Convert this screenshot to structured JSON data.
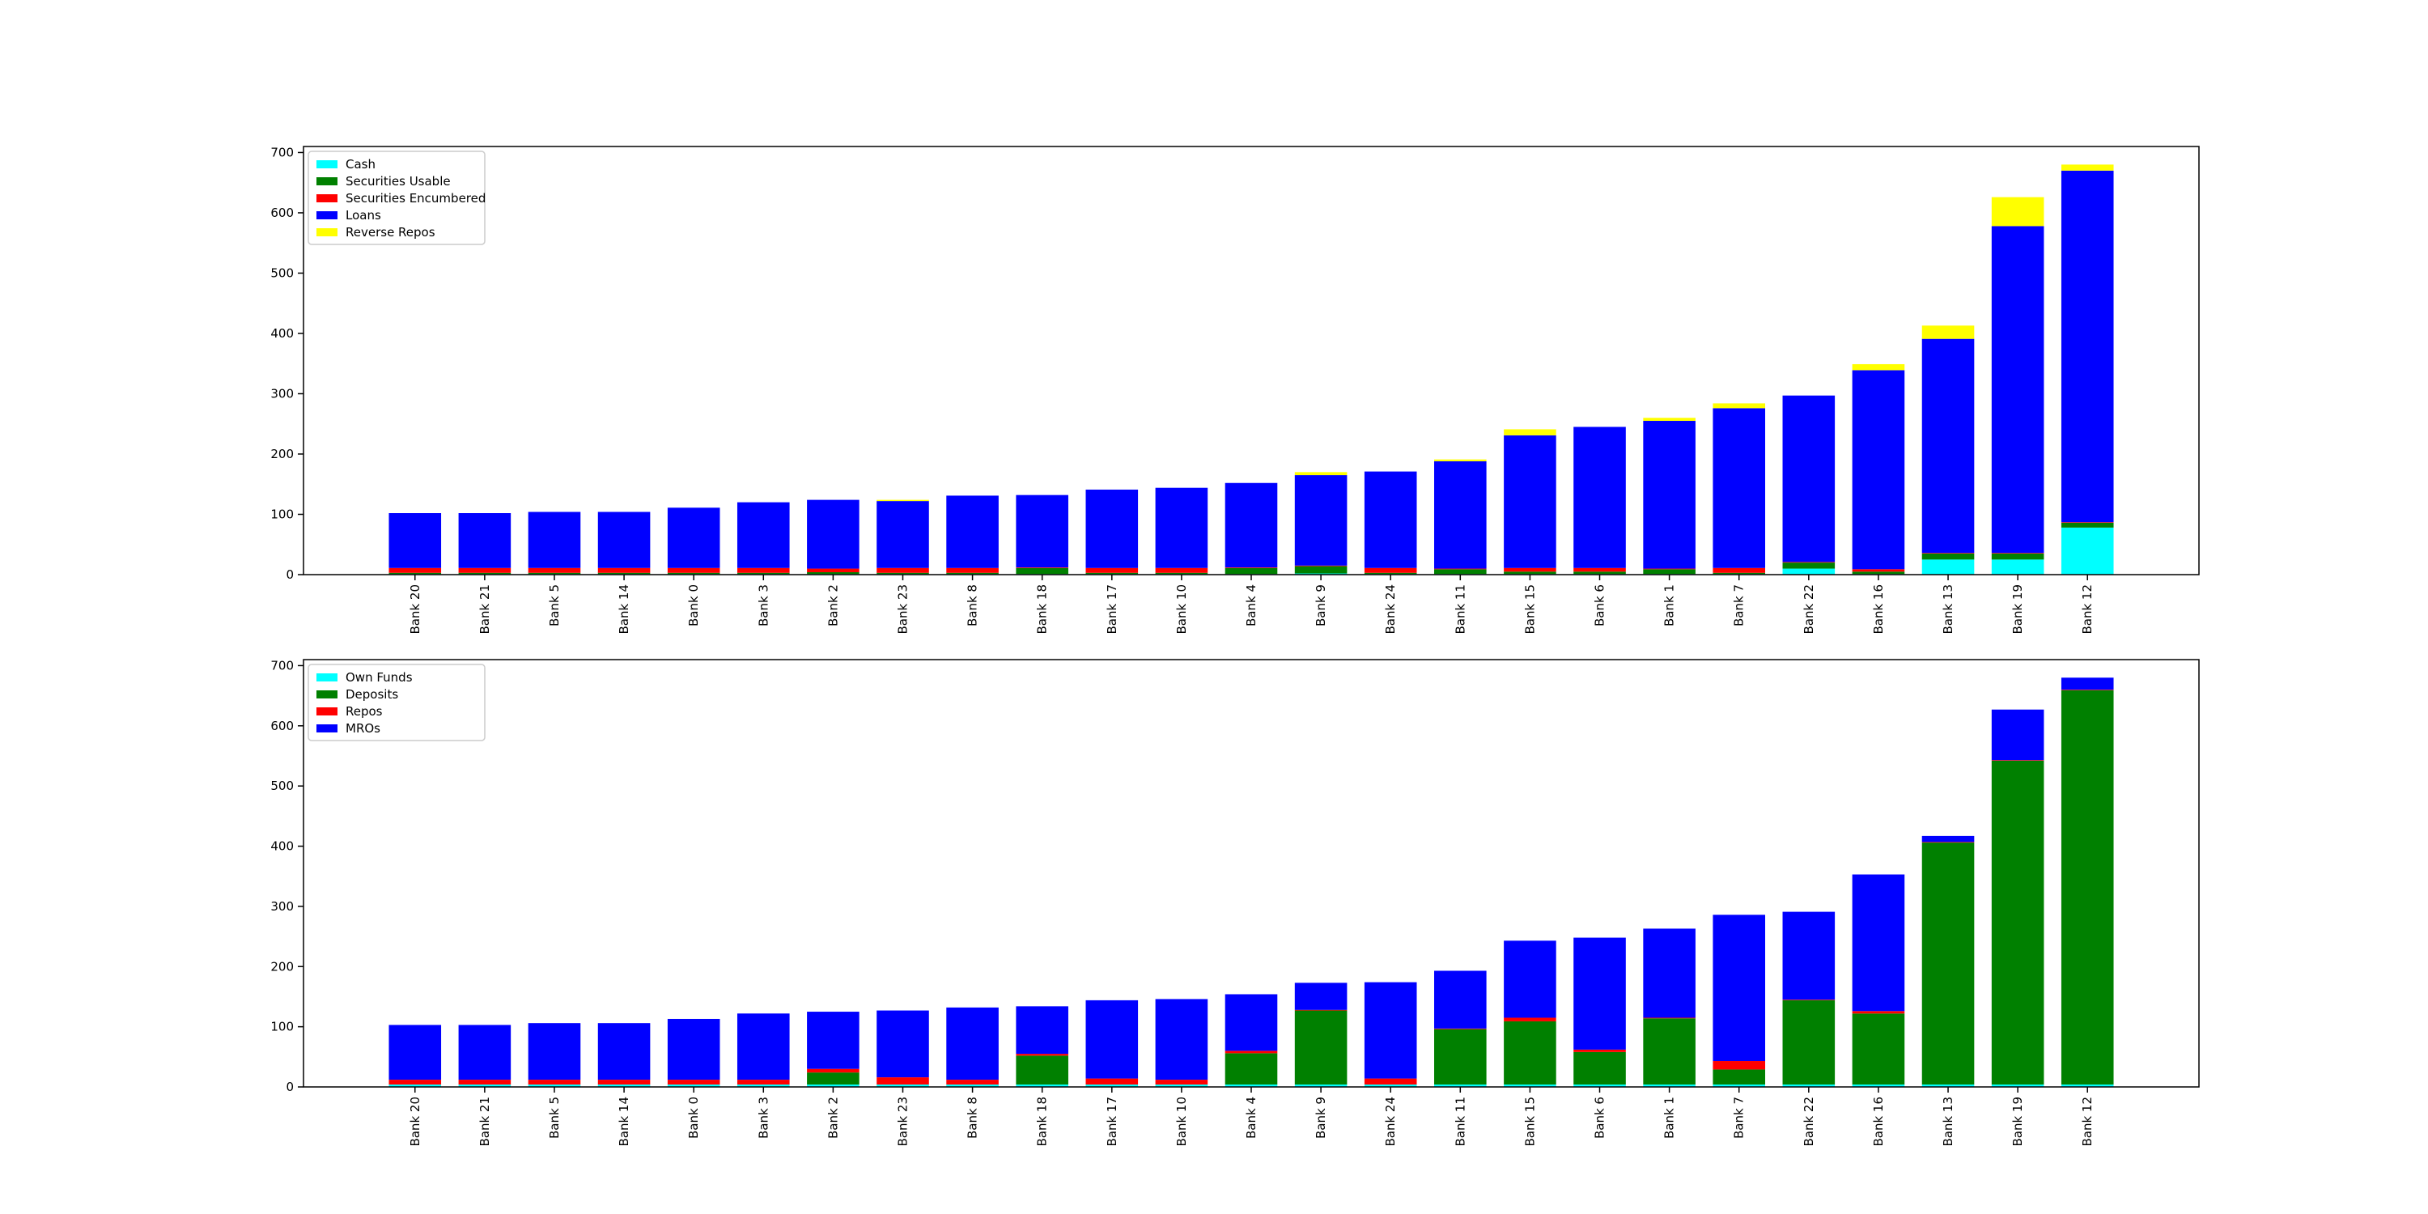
{
  "chart_data": [
    {
      "type": "bar",
      "stacked": true,
      "title": "",
      "xlabel": "",
      "ylabel": "",
      "ylim": [
        0,
        710
      ],
      "yticks": [
        0,
        100,
        200,
        300,
        400,
        500,
        600,
        700
      ],
      "grid": false,
      "legend_position": "top-left",
      "categories": [
        "Bank 20",
        "Bank 21",
        "Bank 5",
        "Bank 14",
        "Bank 0",
        "Bank 3",
        "Bank 2",
        "Bank 23",
        "Bank 8",
        "Bank 18",
        "Bank 17",
        "Bank 10",
        "Bank 4",
        "Bank 9",
        "Bank 24",
        "Bank 11",
        "Bank 15",
        "Bank 6",
        "Bank 1",
        "Bank 7",
        "Bank 22",
        "Bank 16",
        "Bank 13",
        "Bank 19",
        "Bank 12"
      ],
      "series": [
        {
          "name": "Cash",
          "color": "#00ffff",
          "values": [
            1,
            1,
            1,
            1,
            1,
            1,
            1,
            1,
            1,
            1,
            1,
            1,
            1,
            2,
            1,
            1,
            1,
            1,
            1,
            1,
            10,
            1,
            25,
            25,
            78
          ]
        },
        {
          "name": "Securities Usable",
          "color": "#008000",
          "values": [
            2,
            2,
            2,
            2,
            2,
            2,
            3,
            2,
            2,
            10,
            2,
            2,
            10,
            12,
            2,
            8,
            4,
            4,
            8,
            2,
            10,
            4,
            10,
            10,
            8
          ]
        },
        {
          "name": "Securities Encumbered",
          "color": "#ff0000",
          "values": [
            8,
            8,
            8,
            8,
            8,
            8,
            6,
            8,
            8,
            1,
            8,
            8,
            1,
            1,
            8,
            1,
            6,
            6,
            1,
            8,
            1,
            4,
            1,
            1,
            1
          ]
        },
        {
          "name": "Loans",
          "color": "#0000ff",
          "values": [
            91,
            91,
            93,
            93,
            100,
            109,
            114,
            111,
            120,
            120,
            130,
            133,
            140,
            150,
            160,
            178,
            220,
            234,
            245,
            265,
            276,
            330,
            355,
            542,
            583
          ]
        },
        {
          "name": "Reverse Repos",
          "color": "#ffff00",
          "values": [
            0,
            0,
            0,
            0,
            0,
            0,
            0,
            2,
            0,
            0,
            0,
            0,
            0,
            5,
            0,
            3,
            10,
            0,
            5,
            8,
            0,
            10,
            22,
            48,
            10
          ]
        }
      ]
    },
    {
      "type": "bar",
      "stacked": true,
      "title": "",
      "xlabel": "",
      "ylabel": "",
      "ylim": [
        0,
        710
      ],
      "yticks": [
        0,
        100,
        200,
        300,
        400,
        500,
        600,
        700
      ],
      "grid": false,
      "legend_position": "top-left",
      "categories": [
        "Bank 20",
        "Bank 21",
        "Bank 5",
        "Bank 14",
        "Bank 0",
        "Bank 3",
        "Bank 2",
        "Bank 23",
        "Bank 8",
        "Bank 18",
        "Bank 17",
        "Bank 10",
        "Bank 4",
        "Bank 9",
        "Bank 24",
        "Bank 11",
        "Bank 15",
        "Bank 6",
        "Bank 1",
        "Bank 7",
        "Bank 22",
        "Bank 16",
        "Bank 13",
        "Bank 19",
        "Bank 12"
      ],
      "series": [
        {
          "name": "Own Funds",
          "color": "#00ffff",
          "values": [
            4,
            4,
            4,
            4,
            4,
            4,
            4,
            4,
            4,
            4,
            4,
            4,
            4,
            4,
            4,
            4,
            4,
            4,
            4,
            4,
            4,
            4,
            4,
            4,
            4
          ]
        },
        {
          "name": "Deposits",
          "color": "#008000",
          "values": [
            0,
            0,
            0,
            0,
            0,
            0,
            20,
            0,
            0,
            48,
            0,
            0,
            52,
            123,
            0,
            92,
            105,
            54,
            110,
            25,
            140,
            118,
            402,
            538,
            655
          ]
        },
        {
          "name": "Repos",
          "color": "#ff0000",
          "values": [
            8,
            8,
            8,
            8,
            8,
            8,
            6,
            12,
            8,
            3,
            10,
            8,
            4,
            1,
            10,
            1,
            6,
            4,
            1,
            14,
            1,
            4,
            1,
            1,
            1
          ]
        },
        {
          "name": "MROs",
          "color": "#0000ff",
          "values": [
            91,
            91,
            94,
            94,
            101,
            110,
            95,
            111,
            120,
            79,
            130,
            134,
            94,
            45,
            160,
            96,
            128,
            186,
            148,
            243,
            146,
            227,
            10,
            84,
            20
          ]
        }
      ]
    }
  ]
}
